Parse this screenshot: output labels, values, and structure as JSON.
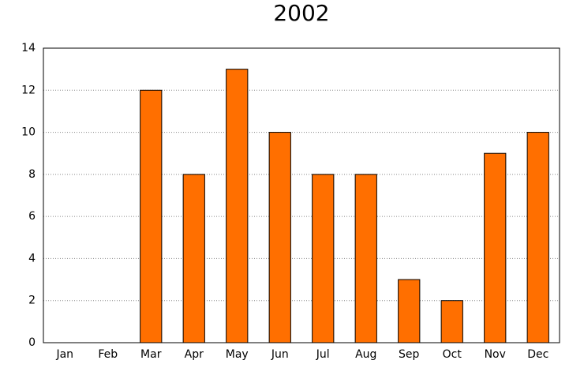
{
  "chart_data": {
    "type": "bar",
    "title": "2002",
    "categories": [
      "Jan",
      "Feb",
      "Mar",
      "Apr",
      "May",
      "Jun",
      "Jul",
      "Aug",
      "Sep",
      "Oct",
      "Nov",
      "Dec"
    ],
    "values": [
      0,
      0,
      12,
      8,
      13,
      10,
      8,
      8,
      3,
      2,
      9,
      10
    ],
    "color": "#ff6f00",
    "ylim": [
      0,
      14
    ],
    "yticks": [
      0,
      2,
      4,
      6,
      8,
      10,
      12,
      14
    ],
    "grid": true
  }
}
